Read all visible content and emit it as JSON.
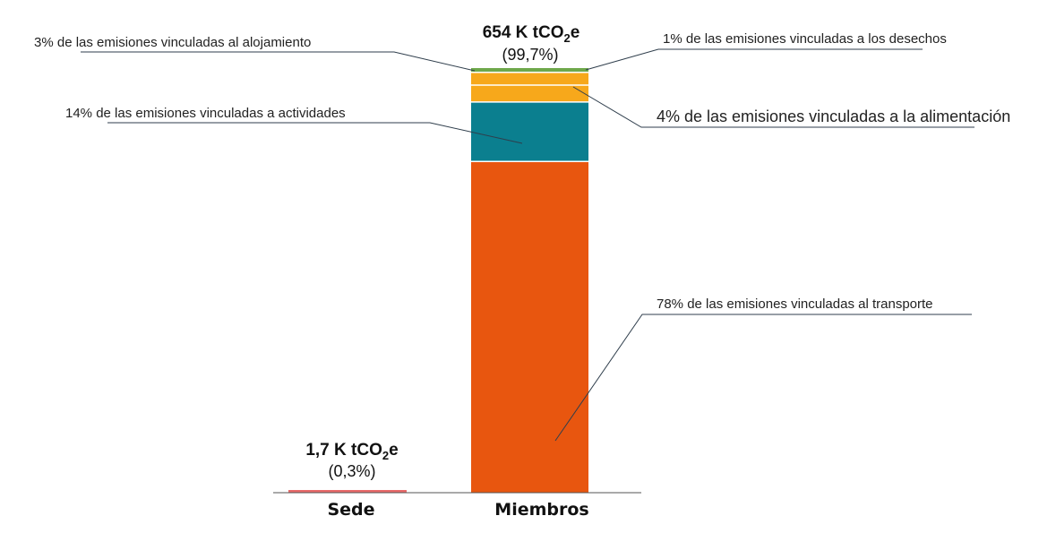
{
  "chart_data": {
    "type": "bar",
    "stacked": true,
    "title": "",
    "xlabel": "",
    "ylabel": "",
    "categories": [
      "Sede",
      "Miembros"
    ],
    "bars": [
      {
        "category": "Sede",
        "total_value": "1,7 K tCO",
        "total_sub": "2",
        "total_suffix": "e",
        "share": "(0,3%)",
        "value_kt": 1.7,
        "color": "#e86a6a",
        "segments": []
      },
      {
        "category": "Miembros",
        "total_value": "654 K  tCO",
        "total_sub": "2",
        "total_suffix": "e",
        "share": "(99,7%)",
        "value_kt": 654,
        "segments": [
          {
            "label": "78% de las emisiones vinculadas al transporte",
            "percent": 78,
            "color": "#e8560f"
          },
          {
            "label": "14% de las emisiones vinculadas a actividades",
            "percent": 14,
            "color": "#0b7f8f"
          },
          {
            "label": "4% de las emisiones vinculadas a la alimentación",
            "percent": 4,
            "color": "#f7a81b"
          },
          {
            "label": "3% de las emisiones vinculadas al alojamiento",
            "percent": 3,
            "color": "#f7a81b"
          },
          {
            "label": "1% de las emisiones vinculadas a los desechos",
            "percent": 1,
            "color": "#6ea84a"
          }
        ]
      }
    ],
    "grid": false,
    "legend": "none"
  }
}
